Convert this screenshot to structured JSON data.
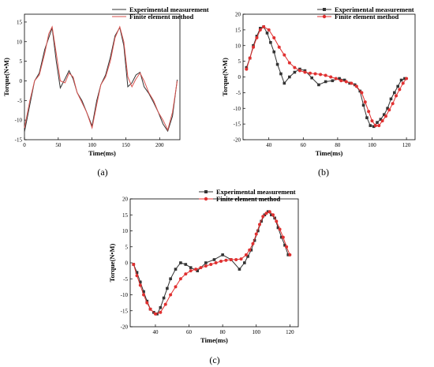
{
  "chart_data": [
    {
      "id": "a",
      "caption": "(a)",
      "type": "line",
      "xlabel": "Time(ms)",
      "ylabel": "Torque(N•M)",
      "xlim": [
        0,
        230
      ],
      "ylim": [
        -15,
        17
      ],
      "xticks": [
        0,
        50,
        100,
        150,
        200
      ],
      "yticks": [
        -15,
        -10,
        -5,
        0,
        5,
        10,
        15
      ],
      "legend": "top-right",
      "colors": {
        "exp": "#333333",
        "fem": "#d9534f"
      },
      "series": [
        {
          "name": "Experimental measurement",
          "marker": "none",
          "x": [
            0,
            8,
            15,
            22,
            30,
            36,
            41,
            47,
            53,
            60,
            66,
            72,
            78,
            85,
            92,
            100,
            107,
            113,
            120,
            127,
            134,
            141,
            147,
            153,
            159,
            165,
            171,
            177,
            184,
            191,
            198,
            205,
            212,
            219,
            226
          ],
          "y": [
            -13,
            -6,
            0,
            2,
            8,
            11,
            13.5,
            5,
            -1.8,
            0.5,
            2.6,
            0.5,
            -3,
            -5,
            -8,
            -11.5,
            -5,
            -1,
            1.5,
            6,
            11.5,
            13.6,
            9,
            -1.5,
            -0.5,
            1.5,
            2.2,
            -1.5,
            -3.2,
            -5.5,
            -8,
            -11,
            -12.8,
            -9,
            0.3
          ]
        },
        {
          "name": "Finite element method",
          "marker": "none",
          "x": [
            0,
            8,
            15,
            22,
            30,
            36,
            41,
            47,
            53,
            60,
            66,
            72,
            78,
            85,
            92,
            100,
            107,
            113,
            120,
            127,
            134,
            141,
            147,
            153,
            159,
            165,
            171,
            177,
            184,
            191,
            198,
            205,
            212,
            219,
            226
          ],
          "y": [
            -12,
            -5,
            0,
            1.5,
            7,
            12,
            13.8,
            7,
            0,
            -0.5,
            2,
            1,
            -3,
            -5.5,
            -8,
            -12,
            -6,
            -1,
            1,
            5,
            11,
            13.8,
            10,
            1,
            -1.5,
            0.5,
            2,
            0,
            -3,
            -5,
            -8,
            -10,
            -12.5,
            -8,
            0
          ]
        }
      ]
    },
    {
      "id": "b",
      "caption": "(b)",
      "type": "line",
      "xlabel": "Time(ms)",
      "ylabel": "Torque(N•M)",
      "xlim": [
        25,
        125
      ],
      "ylim": [
        -20,
        20
      ],
      "xticks": [
        40,
        60,
        80,
        100,
        120
      ],
      "yticks": [
        -20,
        -15,
        -10,
        -5,
        0,
        5,
        10,
        15,
        20
      ],
      "legend": "top-right",
      "colors": {
        "exp": "#333333",
        "fem": "#e03030"
      },
      "series": [
        {
          "name": "Experimental measurement",
          "marker": "square",
          "x": [
            27,
            29,
            31,
            33,
            35,
            37,
            39,
            41,
            43,
            45,
            47,
            49,
            52,
            55,
            58,
            61,
            65,
            69,
            73,
            77,
            81,
            84,
            87,
            90,
            93,
            95,
            97,
            99,
            101,
            103,
            105,
            107,
            109,
            111,
            113,
            115,
            117,
            119
          ],
          "y": [
            3,
            6,
            10,
            13,
            15.5,
            16,
            14,
            11,
            8,
            4,
            1,
            -2,
            0,
            1.5,
            2.5,
            2,
            -0.3,
            -2.5,
            -1.5,
            -1.2,
            -0.5,
            -1,
            -2,
            -2.5,
            -4.5,
            -9,
            -13,
            -15.5,
            -15.8,
            -14.5,
            -13.5,
            -12,
            -10,
            -7,
            -5,
            -3,
            -1,
            -0.5
          ]
        },
        {
          "name": "Finite element method",
          "marker": "circle",
          "x": [
            27,
            29,
            31,
            33,
            35,
            37,
            40,
            43,
            46,
            49,
            52,
            55,
            58,
            61,
            64,
            67,
            70,
            73,
            76,
            79,
            82,
            85,
            88,
            91,
            94,
            96,
            98,
            100,
            102,
            104,
            106,
            108,
            110,
            112,
            114,
            116,
            118,
            120
          ],
          "y": [
            2.5,
            6,
            9.5,
            12.5,
            15,
            16,
            15,
            12.5,
            9.5,
            7,
            4.5,
            3,
            2,
            1.5,
            1.2,
            1,
            0.8,
            0.5,
            0,
            -0.5,
            -1.2,
            -1.5,
            -2,
            -3,
            -5,
            -8,
            -11,
            -14,
            -15.5,
            -15.5,
            -14,
            -12.5,
            -10.5,
            -8.5,
            -6,
            -4,
            -2,
            -0.5
          ]
        }
      ]
    },
    {
      "id": "c",
      "caption": "(c)",
      "type": "line",
      "xlabel": "Time(ms)",
      "ylabel": "Torque(N•M)",
      "xlim": [
        25,
        125
      ],
      "ylim": [
        -20,
        20
      ],
      "xticks": [
        40,
        60,
        80,
        100,
        120
      ],
      "yticks": [
        -20,
        -15,
        -10,
        -5,
        0,
        5,
        10,
        15,
        20
      ],
      "legend": "top-right",
      "colors": {
        "exp": "#333333",
        "fem": "#e03030"
      },
      "series": [
        {
          "name": "Experimental measurement",
          "marker": "square",
          "x": [
            27,
            29,
            31,
            33,
            35,
            37,
            39,
            41,
            43,
            45,
            47,
            49,
            52,
            55,
            58,
            61,
            65,
            70,
            75,
            80,
            85,
            90,
            93,
            95,
            97,
            99,
            101,
            103,
            105,
            107,
            109,
            111,
            113,
            115,
            117,
            119
          ],
          "y": [
            -0.5,
            -3,
            -6,
            -9,
            -12,
            -14.5,
            -15.5,
            -16,
            -14,
            -11,
            -8,
            -5,
            -2,
            0,
            -0.5,
            -1.5,
            -2.5,
            0,
            1,
            2.5,
            1,
            -2,
            0,
            2,
            4,
            7,
            10,
            13,
            15,
            16,
            15,
            14,
            11,
            8,
            5.5,
            2.5
          ]
        },
        {
          "name": "Finite element method",
          "marker": "circle",
          "x": [
            27,
            29,
            31,
            33,
            35,
            37,
            40,
            43,
            46,
            49,
            52,
            55,
            58,
            61,
            64,
            67,
            70,
            73,
            76,
            79,
            82,
            85,
            88,
            91,
            94,
            96,
            98,
            100,
            102,
            104,
            106,
            108,
            110,
            112,
            114,
            116,
            118,
            120
          ],
          "y": [
            -0.5,
            -4,
            -7,
            -10,
            -12.5,
            -14.5,
            -16,
            -15.5,
            -13,
            -10,
            -7.5,
            -5,
            -3.5,
            -2.5,
            -2,
            -1.5,
            -1,
            -0.5,
            0,
            0.5,
            0.8,
            1,
            1,
            1.2,
            2.5,
            4,
            6,
            9,
            12,
            14.5,
            15.5,
            16,
            15,
            13,
            10.5,
            8,
            5,
            2.5
          ]
        }
      ]
    }
  ]
}
